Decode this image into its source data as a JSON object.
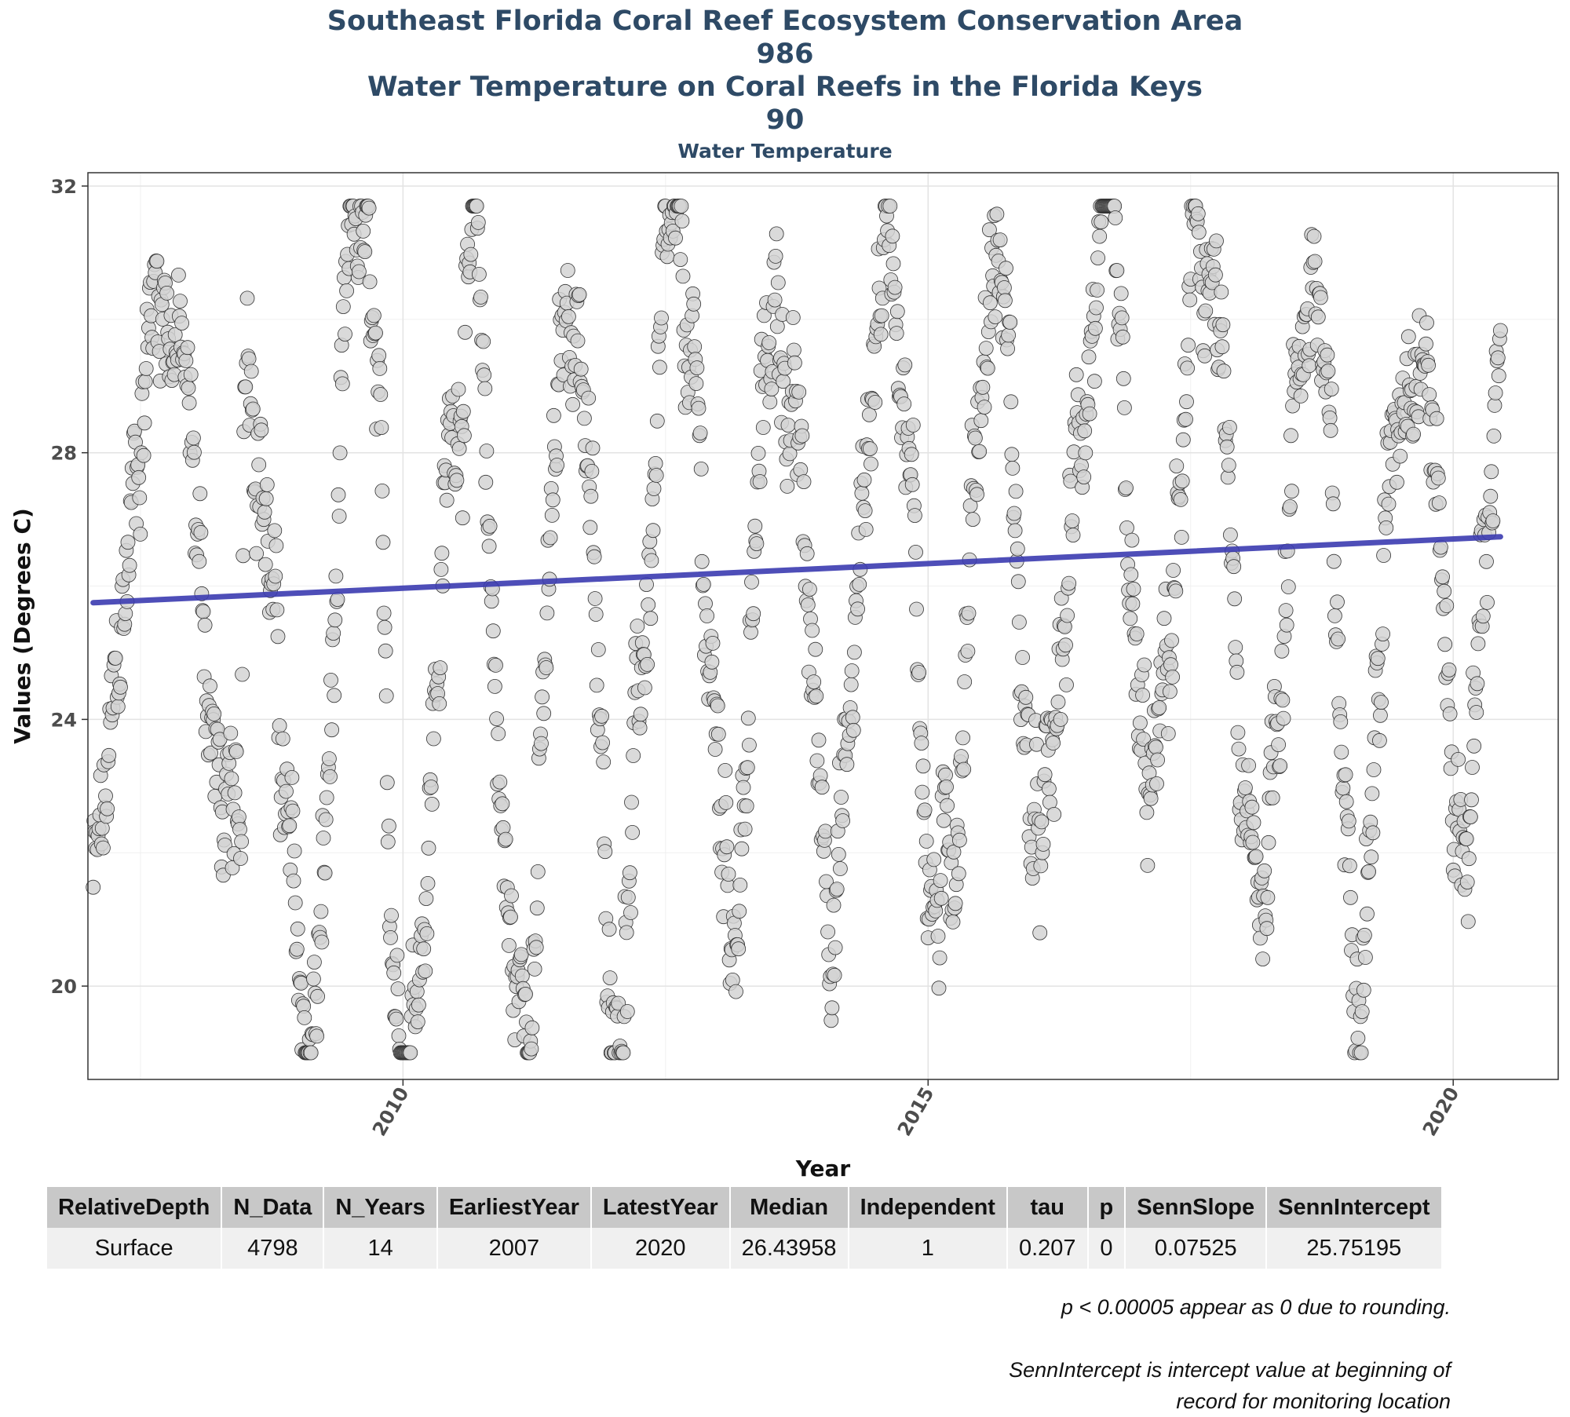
{
  "titles": {
    "line1": "Southeast Florida Coral Reef Ecosystem Conservation Area",
    "line2": "986",
    "line3": "Water Temperature on Coral Reefs in the Florida Keys",
    "line4": "90",
    "subtitle": "Water Temperature"
  },
  "chart_data": {
    "type": "scatter",
    "xlabel": "Year",
    "ylabel": "Values (Degrees C)",
    "xlim": [
      2007.0,
      2021.0
    ],
    "ylim": [
      18.6,
      32.2
    ],
    "x_ticks": [
      2010,
      2015,
      2020
    ],
    "y_ticks": [
      20,
      24,
      28,
      32
    ],
    "grid": true,
    "colors": {
      "points_fill": "#d3d3d3",
      "points_stroke": "#333333",
      "trend_line": "#3b3bb0"
    },
    "series": [
      {
        "type": "scatter",
        "n_points": 4798,
        "data_range": [
          2007.05,
          2020.45
        ],
        "annual_minima": [
          [
            2007.05,
            21.5
          ],
          [
            2008.45,
            21.3
          ],
          [
            2009.1,
            19.1
          ],
          [
            2010.0,
            19.7
          ],
          [
            2011.1,
            19.7
          ],
          [
            2012.0,
            20.3
          ],
          [
            2013.15,
            21.7
          ],
          [
            2014.1,
            22.1
          ],
          [
            2015.1,
            21.1
          ],
          [
            2016.05,
            21.6
          ],
          [
            2017.1,
            22.4
          ],
          [
            2018.1,
            21.1
          ],
          [
            2019.05,
            21.6
          ],
          [
            2020.1,
            22.5
          ]
        ],
        "annual_maxima": [
          [
            2007.7,
            30.8
          ],
          [
            2008.5,
            30.2
          ],
          [
            2009.6,
            30.9
          ],
          [
            2010.65,
            30.4
          ],
          [
            2011.65,
            30.4
          ],
          [
            2012.6,
            30.0
          ],
          [
            2013.55,
            30.2
          ],
          [
            2014.65,
            31.6
          ],
          [
            2015.65,
            31.1
          ],
          [
            2016.65,
            30.7
          ],
          [
            2017.65,
            30.9
          ],
          [
            2018.65,
            30.8
          ],
          [
            2019.65,
            30.9
          ],
          [
            2020.45,
            29.1
          ]
        ]
      },
      {
        "type": "line",
        "x": [
          2007.05,
          2020.45
        ],
        "y": [
          25.75,
          26.74
        ]
      }
    ]
  },
  "table": {
    "headers": [
      "RelativeDepth",
      "N_Data",
      "N_Years",
      "EarliestYear",
      "LatestYear",
      "Median",
      "Independent",
      "tau",
      "p",
      "SennSlope",
      "SennIntercept"
    ],
    "rows": [
      [
        "Surface",
        "4798",
        "14",
        "2007",
        "2020",
        "26.43958",
        "1",
        "0.207",
        "0",
        "0.07525",
        "25.75195"
      ]
    ]
  },
  "notes": {
    "rounding": "p < 0.00005 appear as 0 due to rounding.",
    "intercept_line1": "SennIntercept is intercept value at beginning of",
    "intercept_line2": "record for monitoring location"
  }
}
